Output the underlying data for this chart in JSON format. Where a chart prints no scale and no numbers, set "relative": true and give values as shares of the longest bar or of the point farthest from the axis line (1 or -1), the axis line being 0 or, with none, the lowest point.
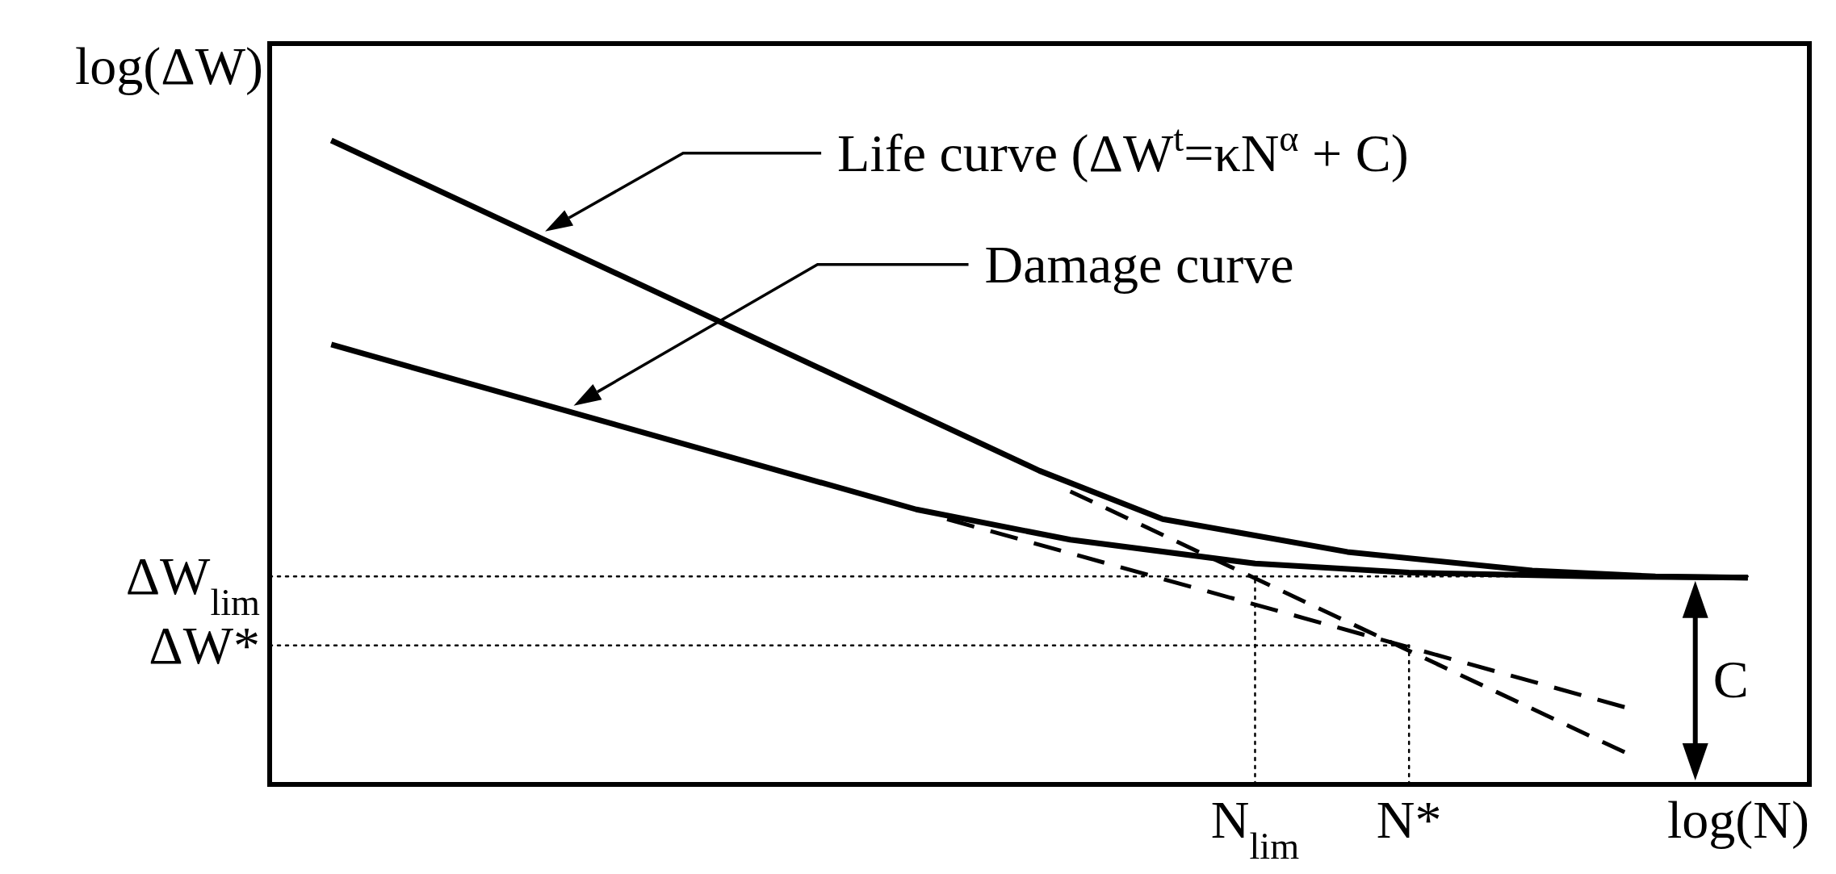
{
  "chart_data": {
    "type": "line",
    "relative": true,
    "xlabel": "log(N)",
    "ylabel": "log(ΔW)",
    "categories": [
      null,
      null,
      null,
      null,
      null,
      null,
      null,
      null,
      null,
      null,
      null,
      null,
      null,
      null,
      null,
      null,
      null,
      null,
      null,
      null,
      null,
      null,
      null,
      null,
      null,
      null,
      null,
      null,
      null,
      null,
      null,
      null,
      "N$_{lim}$",
      null,
      null,
      null,
      null,
      "N*",
      null,
      null,
      null,
      null,
      null,
      null,
      null,
      null,
      null,
      null,
      null,
      null,
      null
    ],
    "series": [
      {
        "color": "#000000",
        "line_style": "solid",
        "values": [
          null,
          null,
          1,
          null,
          null,
          null,
          null,
          null,
          null,
          null,
          null,
          null,
          null,
          null,
          null,
          null,
          null,
          null,
          null,
          null,
          null,
          null,
          null,
          null,
          null,
          0.487,
          null,
          null,
          null,
          0.412,
          null,
          null,
          null,
          null,
          null,
          0.361,
          null,
          null,
          null,
          null,
          null,
          0.332,
          null,
          null,
          null,
          0.323,
          null,
          null,
          0.321,
          null,
          null
        ]
      },
      {
        "color": "#000000",
        "line_style": "solid",
        "values": [
          null,
          null,
          0.683,
          null,
          null,
          null,
          null,
          null,
          null,
          null,
          null,
          null,
          null,
          null,
          null,
          null,
          null,
          null,
          null,
          null,
          null,
          0.427,
          null,
          null,
          null,
          null,
          0.38,
          null,
          null,
          null,
          null,
          null,
          0.343,
          null,
          null,
          null,
          null,
          0.329,
          null,
          null,
          null,
          null,
          null,
          0.323,
          null,
          null,
          null,
          null,
          0.321,
          null,
          null
        ]
      },
      {
        "color": "#000000",
        "line_style": "dashed",
        "values": [
          null,
          null,
          null,
          null,
          null,
          null,
          null,
          null,
          null,
          null,
          null,
          null,
          null,
          null,
          null,
          null,
          null,
          null,
          null,
          null,
          null,
          null,
          null,
          null,
          null,
          null,
          0.455,
          null,
          null,
          null,
          null,
          null,
          null,
          null,
          null,
          null,
          null,
          null,
          null,
          null,
          null,
          null,
          null,
          null,
          0.05,
          null,
          null,
          null,
          null,
          null,
          null
        ]
      },
      {
        "color": "#000000",
        "line_style": "dashed",
        "values": [
          null,
          null,
          null,
          null,
          null,
          null,
          null,
          null,
          null,
          null,
          null,
          null,
          null,
          null,
          null,
          null,
          null,
          null,
          null,
          null,
          null,
          null,
          0.412,
          null,
          null,
          null,
          null,
          null,
          null,
          null,
          null,
          null,
          null,
          null,
          null,
          null,
          null,
          null,
          null,
          null,
          null,
          null,
          null,
          null,
          0.12,
          null,
          null,
          null,
          null,
          null,
          null
        ]
      },
      {
        "color": "#000000",
        "line_style": "dotted",
        "values": [
          0.323,
          null,
          null,
          null,
          null,
          null,
          null,
          null,
          null,
          null,
          null,
          null,
          null,
          null,
          null,
          null,
          null,
          null,
          null,
          null,
          null,
          null,
          null,
          null,
          null,
          null,
          null,
          null,
          null,
          null,
          null,
          null,
          null,
          null,
          null,
          null,
          null,
          null,
          null,
          null,
          null,
          null,
          null,
          null,
          null,
          null,
          null,
          null,
          0.323,
          null,
          null
        ]
      },
      {
        "color": "#000000",
        "line_style": "dotted",
        "values": [
          0.216,
          null,
          null,
          null,
          null,
          null,
          null,
          null,
          null,
          null,
          null,
          null,
          null,
          null,
          null,
          null,
          null,
          null,
          null,
          null,
          null,
          null,
          null,
          null,
          null,
          null,
          null,
          null,
          null,
          null,
          null,
          null,
          null,
          null,
          null,
          null,
          null,
          0.216,
          null,
          null,
          null,
          null,
          null,
          null,
          null,
          null,
          null,
          null,
          null,
          null,
          null
        ]
      }
    ],
    "annotations": [
      "Life curve (ΔW$^{t}$=κN$^{α}$ + C)",
      "Damage curve",
      "ΔW$_{lim}$",
      "ΔW*",
      "C"
    ]
  }
}
